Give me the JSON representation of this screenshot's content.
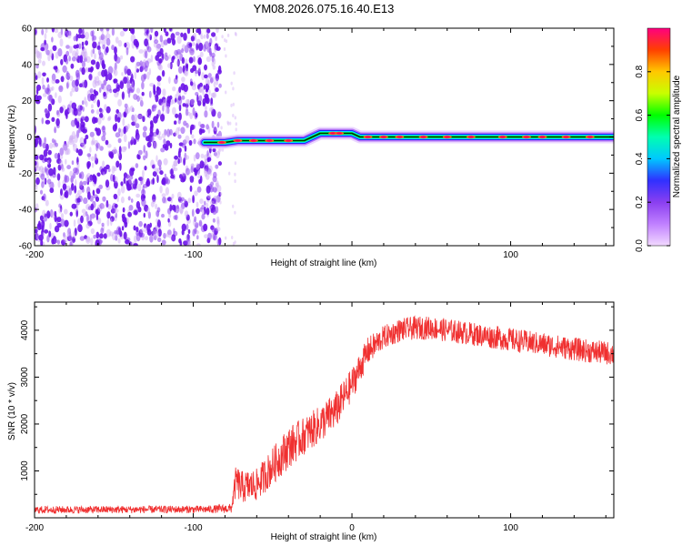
{
  "title": "YM08.2026.075.16.40.E13",
  "colors": {
    "noise": "#8a3ff0",
    "noise_dark": "#6a12e8",
    "snr_line": "#f03030",
    "colorbar": [
      "#f2d9ff",
      "#c080ff",
      "#8a3ff0",
      "#3030ff",
      "#00c8ff",
      "#00ffb0",
      "#00ff00",
      "#c8ff00",
      "#ffc800",
      "#ff4000",
      "#ff0080"
    ]
  },
  "chart_data": [
    {
      "type": "heatmap",
      "id": "spectrogram",
      "xlabel": "Height of straight line (km)",
      "ylabel": "Frequency (Hz)",
      "xlim": [
        -200,
        165
      ],
      "ylim": [
        -60,
        60
      ],
      "xticks": [
        -200,
        -100,
        0,
        100
      ],
      "xtick_labels": [
        "-200",
        "-100",
        "",
        "100"
      ],
      "yticks": [
        -60,
        -40,
        -20,
        0,
        20,
        40,
        60
      ],
      "ytick_labels": [
        "-60",
        "-40",
        "-20",
        "0",
        "20",
        "40",
        "60"
      ],
      "noise_region_x": [
        -200,
        -83
      ],
      "signal_ridge": [
        {
          "x": -93,
          "y": -3
        },
        {
          "x": -80,
          "y": -3
        },
        {
          "x": -72,
          "y": -2
        },
        {
          "x": -45,
          "y": -2
        },
        {
          "x": -30,
          "y": -2
        },
        {
          "x": -20,
          "y": 2
        },
        {
          "x": 0,
          "y": 2
        },
        {
          "x": 5,
          "y": 0
        },
        {
          "x": 165,
          "y": 0
        }
      ],
      "colorbar": {
        "label": "Normalized spectral amplitude",
        "range": [
          0,
          1
        ],
        "ticks": [
          0.0,
          0.2,
          0.4,
          0.6,
          0.8
        ],
        "tick_labels": [
          "0.0",
          "0.2",
          "0.4",
          "0.6",
          "0.8"
        ]
      }
    },
    {
      "type": "line",
      "id": "snr",
      "xlabel": "Height of straight line (km)",
      "ylabel": "SNR (10 * v/v)",
      "xlim": [
        -200,
        165
      ],
      "ylim": [
        0,
        4600
      ],
      "xticks": [
        -200,
        -100,
        0,
        100
      ],
      "xtick_labels": [
        "-200",
        "-100",
        "0",
        "100"
      ],
      "yticks": [
        1000,
        2000,
        3000,
        4000
      ],
      "ytick_labels": [
        "1000",
        "2000",
        "3000",
        "4000"
      ],
      "series": [
        {
          "name": "SNR",
          "x": [
            -200,
            -90,
            -76,
            -73,
            -70,
            -60,
            -50,
            -40,
            -30,
            -20,
            -10,
            0,
            10,
            20,
            30,
            40,
            50,
            60,
            70,
            80,
            90,
            100,
            110,
            120,
            130,
            140,
            150,
            165
          ],
          "y": [
            170,
            180,
            200,
            800,
            650,
            700,
            1100,
            1500,
            1750,
            2000,
            2300,
            2850,
            3550,
            3850,
            4000,
            4050,
            4050,
            4000,
            3950,
            3900,
            3850,
            3800,
            3750,
            3700,
            3650,
            3600,
            3550,
            3500
          ],
          "noise_amplitude": [
            80,
            80,
            100,
            350,
            350,
            350,
            400,
            450,
            400,
            400,
            400,
            350,
            300,
            250,
            250,
            250,
            250,
            250,
            250,
            250,
            250,
            250,
            250,
            250,
            250,
            250,
            250,
            250
          ]
        }
      ]
    }
  ]
}
